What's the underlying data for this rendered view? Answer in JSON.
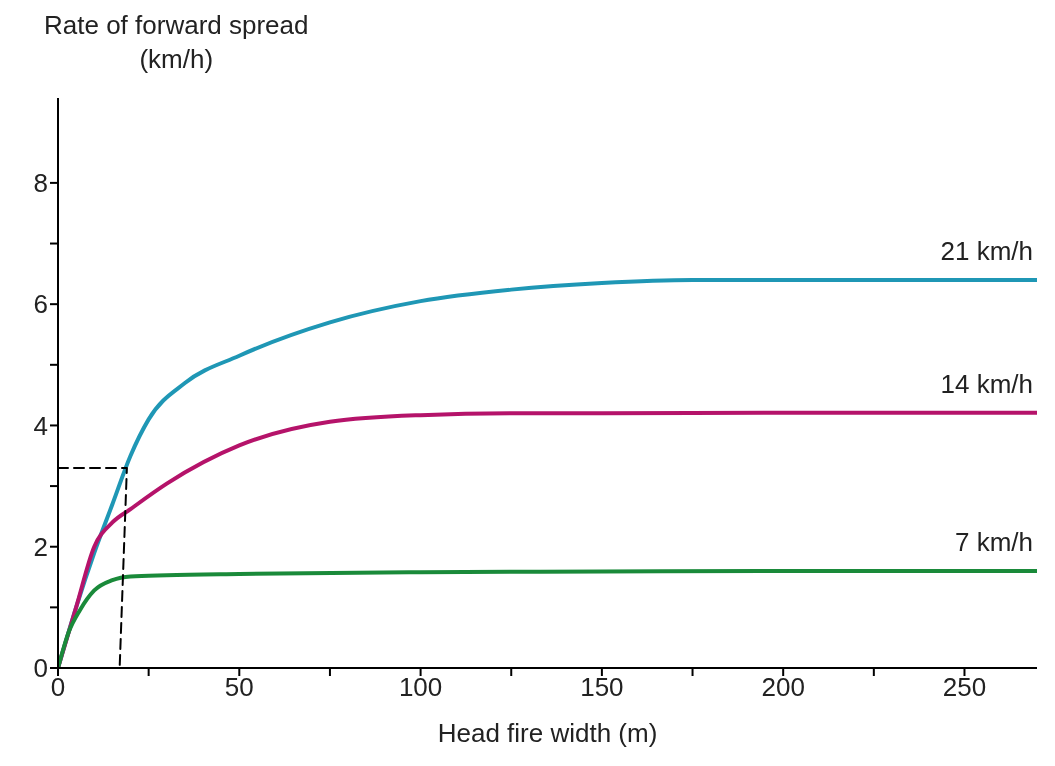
{
  "chart_data": {
    "type": "line",
    "xlabel": "Head fire width (m)",
    "ylabel": "Rate of forward spread\n(km/h)",
    "xlim": [
      0,
      270
    ],
    "ylim": [
      0,
      9.4
    ],
    "xticks": [
      0,
      {
        "value": 25,
        "label": null
      },
      50,
      {
        "value": 75,
        "label": null
      },
      100,
      {
        "value": 125,
        "label": null
      },
      150,
      {
        "value": 175,
        "label": null
      },
      200,
      {
        "value": 225,
        "label": null
      },
      250
    ],
    "yticks": [
      0,
      {
        "value": 1,
        "label": null
      },
      2,
      {
        "value": 3,
        "label": null
      },
      4,
      {
        "value": 5,
        "label": null
      },
      6,
      {
        "value": 7,
        "label": null
      },
      8
    ],
    "marker": "none",
    "line_style": "solid",
    "series": [
      {
        "name": "21 km/h",
        "color": "#1f97b5",
        "x": [
          0,
          5,
          10,
          15,
          20,
          25,
          35,
          50,
          75,
          100,
          125,
          150,
          175,
          200,
          230,
          270
        ],
        "values": [
          0,
          1.0,
          1.9,
          2.7,
          3.5,
          4.1,
          4.7,
          5.15,
          5.7,
          6.05,
          6.24,
          6.35,
          6.4,
          6.4,
          6.4,
          6.4
        ]
      },
      {
        "name": "14 km/h",
        "color": "#b5136a",
        "x": [
          0,
          5,
          10,
          15,
          20,
          30,
          50,
          75,
          100,
          125,
          150,
          200,
          270
        ],
        "values": [
          0,
          1.0,
          2.0,
          2.4,
          2.62,
          3.04,
          3.67,
          4.06,
          4.17,
          4.2,
          4.2,
          4.21,
          4.21
        ]
      },
      {
        "name": "7 km/h",
        "color": "#1a8a3a",
        "x": [
          0,
          3,
          6,
          10,
          15,
          20,
          30,
          50,
          100,
          150,
          200,
          270
        ],
        "values": [
          0,
          0.6,
          0.95,
          1.28,
          1.45,
          1.51,
          1.53,
          1.55,
          1.58,
          1.59,
          1.6,
          1.6
        ]
      },
      {
        "color": "#000000",
        "line_style": "dashed",
        "x": [
          0,
          19,
          17
        ],
        "values": [
          3.3,
          3.3,
          0
        ]
      }
    ]
  }
}
